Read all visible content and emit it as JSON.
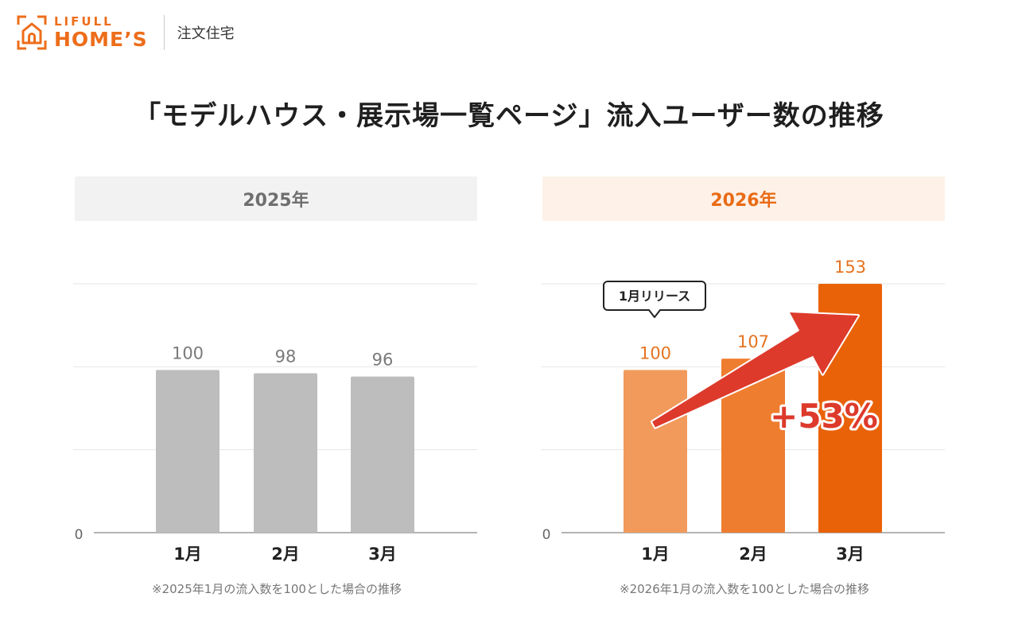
{
  "brand": {
    "lifull": "LIFULL",
    "homes": "HOME’S",
    "section": "注文住宅",
    "color": "#ed6d1a"
  },
  "title": "「モデルハウス・展示場一覧ページ」流入ユーザー数の推移",
  "chart_data": [
    {
      "type": "bar",
      "title": "2025年",
      "categories": [
        "1月",
        "2月",
        "3月"
      ],
      "values": [
        100,
        98,
        96
      ],
      "ylim": [
        0,
        153
      ],
      "y_tick_labels": [
        "0"
      ],
      "grid": true,
      "colors": [
        "#bdbdbd",
        "#bdbdbd",
        "#bdbdbd"
      ],
      "label_color": "#7a7a7a",
      "footnote": "※2025年1月の流入数を100とした場合の推移"
    },
    {
      "type": "bar",
      "title": "2026年",
      "categories": [
        "1月",
        "2月",
        "3月"
      ],
      "values": [
        100,
        107,
        153
      ],
      "ylim": [
        0,
        153
      ],
      "y_tick_labels": [
        "0"
      ],
      "grid": true,
      "colors": [
        "#f29a5b",
        "#ef7d2f",
        "#ea6207"
      ],
      "label_color": "#e5731f",
      "annotations": {
        "callout": "1月リリース",
        "growth": "+53%",
        "arrow_color": "#dd3a2c"
      },
      "footnote": "※2026年1月の流入数を100とした場合の推移"
    }
  ]
}
